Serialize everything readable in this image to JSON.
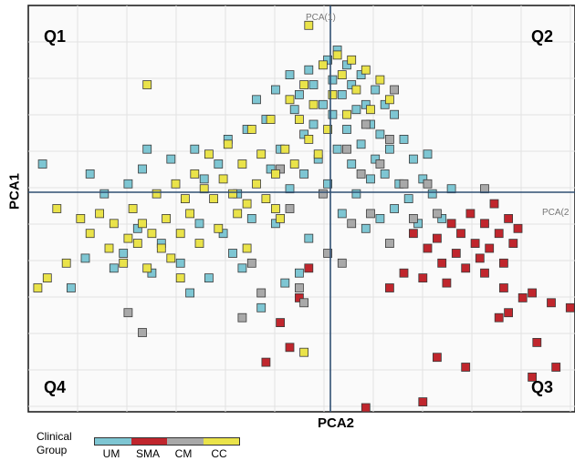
{
  "chart_data": {
    "type": "scatter",
    "xlabel": "PCA2",
    "ylabel": "PCA1",
    "axis_line_labels": {
      "vertical": "PCA(1)",
      "horizontal": "PCA(2"
    },
    "quadrants": {
      "q1": "Q1",
      "q2": "Q2",
      "q3": "Q3",
      "q4": "Q4"
    },
    "grid": true,
    "legend": {
      "title": "Clinical Group",
      "placement": "bottom-left",
      "entries": [
        {
          "name": "UM",
          "color": "#7ec6d3"
        },
        {
          "name": "SMA",
          "color": "#c0262d"
        },
        {
          "name": "CM",
          "color": "#a9a9a9"
        },
        {
          "name": "CC",
          "color": "#eae34a"
        }
      ]
    },
    "xlim": [
      -6.1,
      5.4
    ],
    "ylim": [
      -4.2,
      4.0
    ],
    "series": [
      {
        "name": "UM",
        "color": "#7ec6d3",
        "points": [
          [
            -5.8,
            0.8
          ],
          [
            -5.2,
            -1.7
          ],
          [
            -4.9,
            -1.1
          ],
          [
            -4.8,
            0.6
          ],
          [
            -4.5,
            0.2
          ],
          [
            -4.3,
            -1.3
          ],
          [
            -4.1,
            -1.0
          ],
          [
            -4.0,
            0.4
          ],
          [
            -3.8,
            -0.5
          ],
          [
            -3.7,
            0.7
          ],
          [
            -3.6,
            1.1
          ],
          [
            -3.5,
            -1.4
          ],
          [
            -3.3,
            -0.8
          ],
          [
            -3.1,
            0.9
          ],
          [
            -2.9,
            -1.2
          ],
          [
            -2.7,
            -1.8
          ],
          [
            -2.6,
            1.1
          ],
          [
            -2.5,
            -0.4
          ],
          [
            -2.4,
            0.5
          ],
          [
            -2.3,
            -1.5
          ],
          [
            -2.1,
            0.8
          ],
          [
            -2.0,
            -0.6
          ],
          [
            -1.9,
            1.3
          ],
          [
            -1.8,
            -1.0
          ],
          [
            -1.7,
            0.2
          ],
          [
            -1.6,
            -1.3
          ],
          [
            -1.5,
            1.5
          ],
          [
            -1.4,
            -0.3
          ],
          [
            -1.3,
            2.1
          ],
          [
            -1.2,
            -2.1
          ],
          [
            -1.1,
            1.7
          ],
          [
            -1.0,
            0.7
          ],
          [
            -0.9,
            -0.4
          ],
          [
            -0.9,
            2.3
          ],
          [
            -0.8,
            1.1
          ],
          [
            -0.7,
            -1.6
          ],
          [
            -0.6,
            2.6
          ],
          [
            -0.6,
            0.3
          ],
          [
            -0.5,
            1.9
          ],
          [
            -0.4,
            -1.4
          ],
          [
            -0.4,
            2.2
          ],
          [
            -0.3,
            1.4
          ],
          [
            -0.3,
            0.6
          ],
          [
            -0.2,
            2.7
          ],
          [
            -0.2,
            -0.7
          ],
          [
            -0.1,
            1.6
          ],
          [
            -0.1,
            2.4
          ],
          [
            0.0,
            0.9
          ],
          [
            0.1,
            2.0
          ],
          [
            0.2,
            2.9
          ],
          [
            0.2,
            0.4
          ],
          [
            0.3,
            1.8
          ],
          [
            0.3,
            2.5
          ],
          [
            0.4,
            3.1
          ],
          [
            0.4,
            1.1
          ],
          [
            0.5,
            2.2
          ],
          [
            0.5,
            -0.2
          ],
          [
            0.6,
            2.8
          ],
          [
            0.6,
            1.5
          ],
          [
            0.7,
            0.8
          ],
          [
            0.7,
            2.4
          ],
          [
            0.8,
            1.9
          ],
          [
            0.8,
            0.2
          ],
          [
            0.9,
            2.6
          ],
          [
            0.9,
            1.2
          ],
          [
            1.0,
            -0.5
          ],
          [
            1.0,
            2.0
          ],
          [
            1.1,
            0.5
          ],
          [
            1.1,
            1.6
          ],
          [
            1.2,
            2.3
          ],
          [
            1.2,
            0.9
          ],
          [
            1.3,
            -0.3
          ],
          [
            1.3,
            1.4
          ],
          [
            1.4,
            2.0
          ],
          [
            1.4,
            0.6
          ],
          [
            1.5,
            1.1
          ],
          [
            1.6,
            -0.1
          ],
          [
            1.6,
            1.8
          ],
          [
            1.7,
            0.4
          ],
          [
            1.8,
            1.3
          ],
          [
            1.9,
            0.1
          ],
          [
            2.0,
            0.9
          ],
          [
            2.1,
            -0.4
          ],
          [
            2.2,
            0.5
          ],
          [
            2.3,
            1.0
          ],
          [
            2.4,
            0.2
          ],
          [
            2.6,
            -0.3
          ],
          [
            2.8,
            0.3
          ]
        ]
      },
      {
        "name": "SMA",
        "color": "#c0262d",
        "points": [
          [
            -0.2,
            -1.3
          ],
          [
            -0.4,
            -1.9
          ],
          [
            -0.8,
            -2.4
          ],
          [
            -0.6,
            -2.9
          ],
          [
            -1.1,
            -3.2
          ],
          [
            1.5,
            -1.7
          ],
          [
            1.8,
            -1.4
          ],
          [
            2.0,
            -0.6
          ],
          [
            2.2,
            -1.5
          ],
          [
            2.3,
            -0.9
          ],
          [
            2.5,
            -0.7
          ],
          [
            2.6,
            -1.2
          ],
          [
            2.7,
            -1.6
          ],
          [
            2.8,
            -0.4
          ],
          [
            2.9,
            -1.0
          ],
          [
            3.0,
            -0.6
          ],
          [
            3.1,
            -1.3
          ],
          [
            3.2,
            -0.2
          ],
          [
            3.3,
            -0.8
          ],
          [
            3.4,
            -1.1
          ],
          [
            3.5,
            -0.4
          ],
          [
            3.6,
            -0.9
          ],
          [
            3.7,
            0.0
          ],
          [
            3.8,
            -0.6
          ],
          [
            3.9,
            -1.2
          ],
          [
            4.0,
            -0.3
          ],
          [
            4.1,
            -0.8
          ],
          [
            4.2,
            -0.5
          ],
          [
            4.3,
            -1.9
          ],
          [
            4.0,
            -2.2
          ],
          [
            3.8,
            -2.3
          ],
          [
            4.5,
            -1.8
          ],
          [
            4.9,
            -2.0
          ],
          [
            5.3,
            -2.1
          ],
          [
            4.6,
            -2.8
          ],
          [
            4.5,
            -3.5
          ],
          [
            5.0,
            -3.3
          ],
          [
            3.1,
            -3.3
          ],
          [
            2.5,
            -3.1
          ],
          [
            2.2,
            -4.0
          ],
          [
            1.0,
            -4.2
          ],
          [
            3.5,
            -1.4
          ],
          [
            3.9,
            -1.7
          ]
        ]
      },
      {
        "name": "CM",
        "color": "#a9a9a9",
        "points": [
          [
            -4.0,
            -2.2
          ],
          [
            -3.7,
            -2.6
          ],
          [
            -1.6,
            -2.3
          ],
          [
            -1.2,
            -1.8
          ],
          [
            -0.3,
            -2.0
          ],
          [
            -1.4,
            -1.2
          ],
          [
            -0.6,
            -0.1
          ],
          [
            -0.8,
            0.7
          ],
          [
            0.1,
            0.2
          ],
          [
            0.2,
            -1.0
          ],
          [
            0.5,
            -1.2
          ],
          [
            0.6,
            1.1
          ],
          [
            0.7,
            -0.4
          ],
          [
            0.9,
            0.6
          ],
          [
            1.0,
            1.6
          ],
          [
            1.1,
            -0.2
          ],
          [
            1.3,
            0.8
          ],
          [
            1.5,
            1.3
          ],
          [
            1.6,
            2.3
          ],
          [
            1.8,
            0.4
          ],
          [
            2.0,
            -0.3
          ],
          [
            2.3,
            0.4
          ],
          [
            2.5,
            -0.2
          ],
          [
            3.5,
            0.3
          ],
          [
            -0.4,
            -1.7
          ],
          [
            1.5,
            -0.8
          ]
        ]
      },
      {
        "name": "CC",
        "color": "#eae34a",
        "points": [
          [
            -0.2,
            3.6
          ],
          [
            -5.0,
            -0.3
          ],
          [
            -4.8,
            -0.6
          ],
          [
            -4.6,
            -0.2
          ],
          [
            -4.4,
            -0.9
          ],
          [
            -4.3,
            -0.4
          ],
          [
            -4.1,
            -1.2
          ],
          [
            -4.0,
            -0.7
          ],
          [
            -3.9,
            -0.1
          ],
          [
            -3.8,
            -0.8
          ],
          [
            -3.7,
            -0.4
          ],
          [
            -3.6,
            -1.3
          ],
          [
            -3.5,
            -0.6
          ],
          [
            -3.4,
            0.2
          ],
          [
            -3.3,
            -0.9
          ],
          [
            -3.2,
            -0.3
          ],
          [
            -3.1,
            -1.1
          ],
          [
            -3.0,
            0.4
          ],
          [
            -2.9,
            -0.6
          ],
          [
            -2.8,
            0.1
          ],
          [
            -2.7,
            -0.2
          ],
          [
            -2.6,
            0.6
          ],
          [
            -2.5,
            -0.8
          ],
          [
            -2.4,
            0.3
          ],
          [
            -2.3,
            1.0
          ],
          [
            -2.2,
            0.1
          ],
          [
            -2.1,
            -0.5
          ],
          [
            -2.0,
            0.5
          ],
          [
            -1.9,
            1.2
          ],
          [
            -1.8,
            0.2
          ],
          [
            -1.7,
            -0.2
          ],
          [
            -1.6,
            0.8
          ],
          [
            -1.5,
            0.0
          ],
          [
            -1.4,
            1.5
          ],
          [
            -1.3,
            0.4
          ],
          [
            -1.2,
            1.0
          ],
          [
            -1.1,
            0.1
          ],
          [
            -1.0,
            1.7
          ],
          [
            -0.9,
            0.6
          ],
          [
            -0.8,
            -0.3
          ],
          [
            -0.7,
            1.1
          ],
          [
            -0.6,
            2.1
          ],
          [
            -0.5,
            0.8
          ],
          [
            -0.4,
            1.7
          ],
          [
            -0.3,
            2.4
          ],
          [
            -0.2,
            1.3
          ],
          [
            -0.1,
            2.0
          ],
          [
            0.0,
            1.0
          ],
          [
            0.1,
            2.8
          ],
          [
            0.2,
            1.5
          ],
          [
            0.3,
            2.2
          ],
          [
            0.4,
            3.0
          ],
          [
            0.5,
            2.6
          ],
          [
            0.6,
            1.8
          ],
          [
            0.7,
            2.9
          ],
          [
            0.8,
            2.3
          ],
          [
            1.0,
            2.7
          ],
          [
            1.1,
            1.9
          ],
          [
            1.3,
            2.5
          ],
          [
            1.5,
            2.1
          ],
          [
            -5.5,
            -0.1
          ],
          [
            -5.7,
            -1.5
          ],
          [
            -5.9,
            -1.7
          ],
          [
            -5.3,
            -1.2
          ],
          [
            -3.6,
            2.4
          ],
          [
            -2.9,
            -1.5
          ],
          [
            -1.5,
            -0.9
          ],
          [
            -0.9,
            -0.1
          ],
          [
            -0.3,
            -3.0
          ]
        ]
      }
    ]
  }
}
